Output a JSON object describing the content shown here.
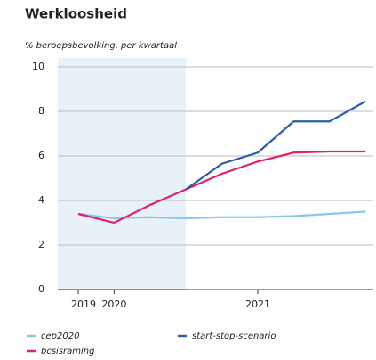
{
  "chart_data": {
    "type": "line",
    "title": "Werkloosheid",
    "subtitle": "% beroepsbevolking, per kwartaal",
    "categories": [
      "2019",
      "2020",
      null,
      null,
      null,
      "2021",
      null,
      null,
      null
    ],
    "series": [
      {
        "name": "cep2020",
        "color": "#86c8ec",
        "values": [
          3.4,
          3.2,
          3.25,
          3.2,
          3.25,
          3.25,
          3.3,
          3.4,
          3.5
        ]
      },
      {
        "name": "bcsisraming",
        "color": "#e4206c",
        "values": [
          3.4,
          3.0,
          3.8,
          4.5,
          5.2,
          5.75,
          6.15,
          6.2,
          6.2
        ]
      },
      {
        "name": "start-stop-scenario",
        "color": "#2b5ea8",
        "values": [
          null,
          null,
          null,
          4.5,
          5.65,
          6.15,
          7.55,
          7.55,
          8.45
        ]
      }
    ],
    "ylim": [
      0,
      10
    ],
    "yticks": [
      0,
      2,
      4,
      6,
      8,
      10
    ],
    "grid": true
  }
}
